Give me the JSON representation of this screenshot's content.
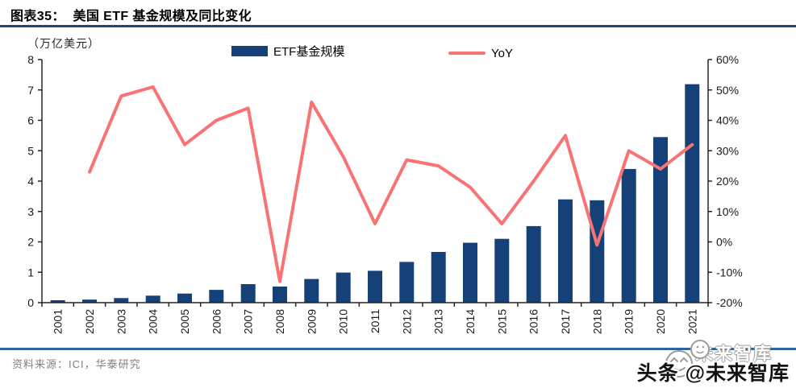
{
  "header": {
    "title": "图表35：  美国 ETF 基金规模及同比变化"
  },
  "chart_data": {
    "type": "combo-bar-line",
    "title": "美国 ETF 基金规模及同比变化",
    "unit_label": "（万亿美元）",
    "grid": false,
    "legend_position": "top",
    "categories": [
      "2001",
      "2002",
      "2003",
      "2004",
      "2005",
      "2006",
      "2007",
      "2008",
      "2009",
      "2010",
      "2011",
      "2012",
      "2013",
      "2014",
      "2015",
      "2016",
      "2017",
      "2018",
      "2019",
      "2020",
      "2021"
    ],
    "series": [
      {
        "name": "ETF基金规模",
        "type": "bar",
        "axis": "left",
        "color": "#164178",
        "values": [
          0.08,
          0.1,
          0.15,
          0.23,
          0.3,
          0.42,
          0.61,
          0.53,
          0.78,
          0.99,
          1.05,
          1.34,
          1.67,
          1.97,
          2.1,
          2.52,
          3.4,
          3.37,
          4.4,
          5.45,
          7.19
        ]
      },
      {
        "name": "YoY",
        "type": "line",
        "axis": "right",
        "color": "#f87474",
        "values": [
          null,
          23,
          48,
          51,
          32,
          40,
          44,
          -13,
          46,
          28,
          6,
          27,
          25,
          18,
          6,
          20,
          35,
          -1,
          30,
          24,
          32
        ]
      }
    ],
    "left_axis": {
      "min": 0,
      "max": 8,
      "step": 1,
      "suffix": ""
    },
    "right_axis": {
      "min": -20,
      "max": 60,
      "step": 10,
      "suffix": "%"
    }
  },
  "footer": {
    "source": "资料来源：ICI，华泰研究"
  },
  "watermark": {
    "ghost_text": "未来智库",
    "main_text": "头条 @未来智库"
  },
  "theme": {
    "bar_color": "#164178",
    "line_color": "#f87474",
    "title_rule_color": "#1f4673",
    "footer_rule_color": "#31639c",
    "axis_color": "#262626",
    "tick_text_color": "#1a1a1a",
    "source_text_color": "#808080"
  }
}
